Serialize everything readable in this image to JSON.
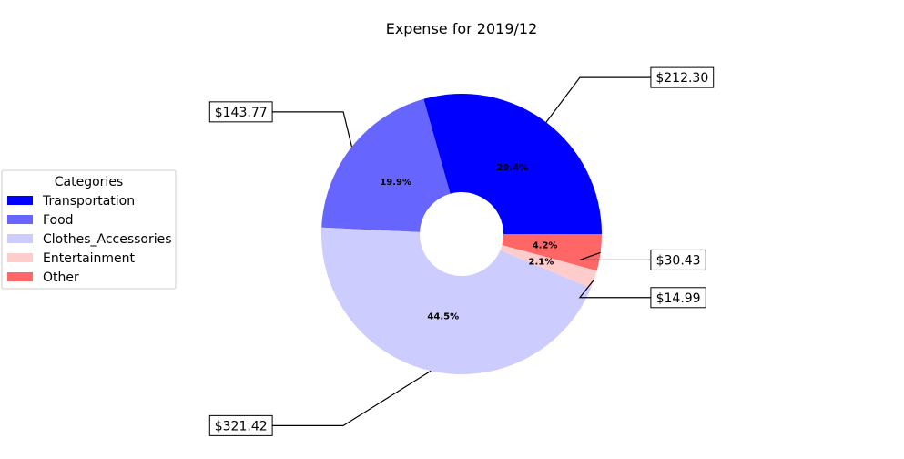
{
  "chart_data": {
    "type": "pie",
    "style": "donut",
    "title": "Expense for 2019/12",
    "legend": {
      "title": "Categories",
      "placement": "center-left"
    },
    "slices": [
      {
        "label": "Transportation",
        "value": 212.3,
        "value_label": "$212.30",
        "percent_label": "29.4%",
        "color": "#0000ff"
      },
      {
        "label": "Food",
        "value": 143.77,
        "value_label": "$143.77",
        "percent_label": "19.9%",
        "color": "#6666ff"
      },
      {
        "label": "Clothes_Accessories",
        "value": 321.42,
        "value_label": "$321.42",
        "percent_label": "44.5%",
        "color": "#ccccff"
      },
      {
        "label": "Entertainment",
        "value": 14.99,
        "value_label": "$14.99",
        "percent_label": "2.1%",
        "color": "#ffcccc"
      },
      {
        "label": "Other",
        "value": 30.43,
        "value_label": "$30.43",
        "percent_label": "4.2%",
        "color": "#ff6666"
      }
    ]
  }
}
